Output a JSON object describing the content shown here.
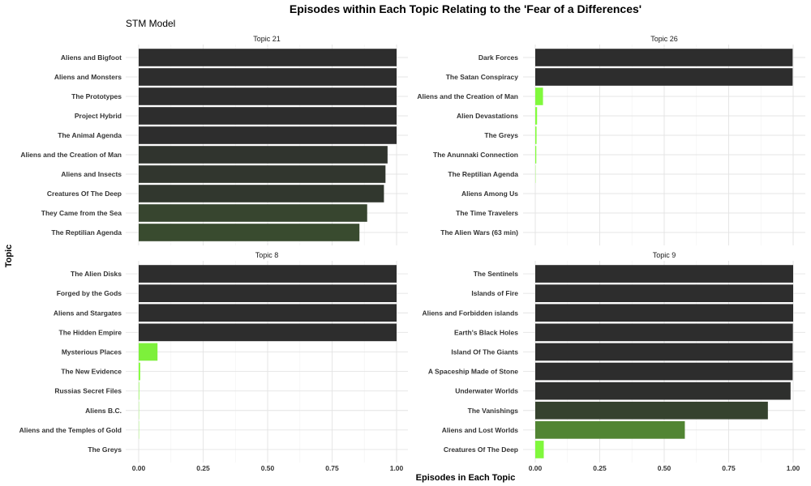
{
  "chart_data": {
    "type": "bar",
    "orientation": "horizontal",
    "title": "Episodes within Each Topic Relating to the 'Fear of a Differences'",
    "subtitle": "STM Model",
    "xlabel": "Episodes in Each Topic",
    "ylabel": "Topic",
    "xlim": [
      0,
      1
    ],
    "xticks": [
      "0.00",
      "0.25",
      "0.50",
      "0.75",
      "1.00"
    ],
    "grid": true,
    "legend": "none",
    "color_scale": {
      "low": "#83ff3c",
      "high": "#2d2d2d"
    },
    "panels": [
      {
        "strip": "Topic 21",
        "categories": [
          "Aliens and Bigfoot",
          "Aliens and Monsters",
          "The Prototypes",
          "Project Hybrid",
          "The Animal Agenda",
          "Aliens and the Creation of Man",
          "Aliens and Insects",
          "Creatures Of The Deep",
          "They Came from the Sea",
          "The Reptilian Agenda"
        ],
        "values": [
          1.0,
          1.0,
          1.0,
          1.0,
          1.0,
          0.965,
          0.957,
          0.951,
          0.886,
          0.856
        ]
      },
      {
        "strip": "Topic 26",
        "categories": [
          "Dark Forces",
          "The Satan Conspiracy",
          "Aliens and the Creation of Man",
          "Alien Devastations",
          "The Greys",
          "The Anunnaki Connection",
          "The Reptilian Agenda",
          "Aliens Among Us",
          "The Time Travelers",
          "The Alien Wars (63 min)"
        ],
        "values": [
          0.998,
          0.998,
          0.03,
          0.007,
          0.005,
          0.004,
          0.001,
          0.0,
          0.0,
          0.0
        ]
      },
      {
        "strip": "Topic 8",
        "categories": [
          "The Alien Disks",
          "Forged by the Gods",
          "Aliens and Stargates",
          "The Hidden Empire",
          "Mysterious Places",
          "The New Evidence",
          "Russias Secret Files",
          "Aliens B.C.",
          "Aliens and the Temples of Gold",
          "The Greys"
        ],
        "values": [
          1.0,
          1.0,
          1.0,
          1.0,
          0.073,
          0.006,
          0.002,
          0.001,
          0.001,
          0.0
        ]
      },
      {
        "strip": "Topic 9",
        "categories": [
          "The Sentinels",
          "Islands of Fire",
          "Aliens and Forbidden islands",
          "Earth's Black Holes",
          "Island Of The Giants",
          "A Spaceship Made of Stone",
          "Underwater Worlds",
          "The Vanishings",
          "Aliens and Lost Worlds",
          "Creatures Of The Deep"
        ],
        "values": [
          1.0,
          1.0,
          1.0,
          0.999,
          0.998,
          0.998,
          0.99,
          0.902,
          0.58,
          0.033
        ]
      }
    ]
  }
}
